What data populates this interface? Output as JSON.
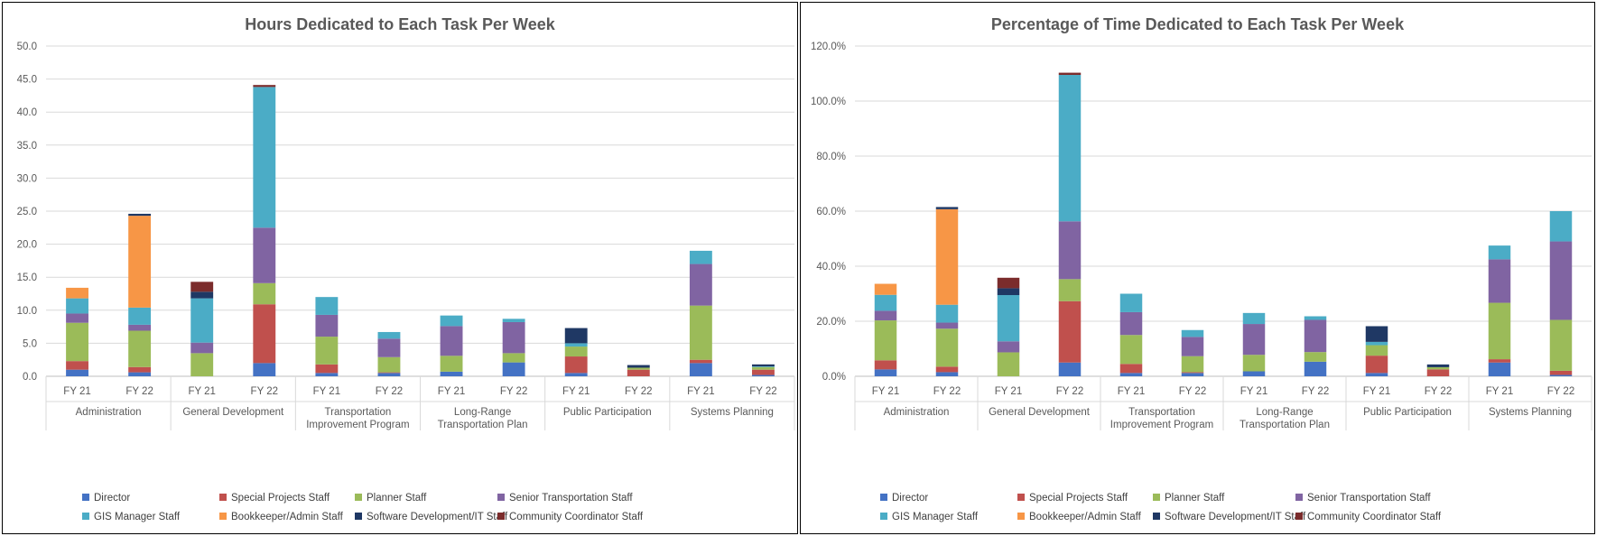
{
  "chart_data": [
    {
      "type": "bar",
      "stacked": true,
      "title": "Hours Dedicated to Each Task Per Week",
      "ylim": [
        0,
        50
      ],
      "yticks": [
        "0.0",
        "5.0",
        "10.0",
        "15.0",
        "20.0",
        "25.0",
        "30.0",
        "35.0",
        "40.0",
        "45.0",
        "50.0"
      ],
      "groups": [
        "Administration",
        "General Development",
        "Transportation Improvement Program",
        "Long-Range Transportation Plan",
        "Public Participation",
        "Systems Planning"
      ],
      "group_label_lines": [
        [
          "Administration"
        ],
        [
          "General Development"
        ],
        [
          "Transportation",
          "Improvement Program"
        ],
        [
          "Long-Range",
          "Transportation Plan"
        ],
        [
          "Public Participation"
        ],
        [
          "Systems Planning"
        ]
      ],
      "categories": [
        "FY 21",
        "FY 22",
        "FY 21",
        "FY 22",
        "FY 21",
        "FY 22",
        "FY 21",
        "FY 22",
        "FY 21",
        "FY 22",
        "FY 21",
        "FY 22"
      ],
      "series": [
        {
          "name": "Director",
          "color": "#4472C4",
          "values": [
            1.0,
            0.6,
            0.0,
            2.0,
            0.5,
            0.5,
            0.7,
            2.1,
            0.5,
            0.0,
            2.0,
            0.2
          ]
        },
        {
          "name": "Special Projects Staff",
          "color": "#C0504D",
          "values": [
            1.3,
            0.8,
            0.0,
            8.9,
            1.3,
            0.1,
            0.0,
            0.0,
            2.5,
            1.0,
            0.5,
            0.8
          ]
        },
        {
          "name": "Planner Staff",
          "color": "#9BBB59",
          "values": [
            5.8,
            5.5,
            3.5,
            3.2,
            4.2,
            2.3,
            2.4,
            1.4,
            1.5,
            0.3,
            8.2,
            0.4
          ]
        },
        {
          "name": "Senior Transportation Staff",
          "color": "#8064A2",
          "values": [
            1.4,
            0.9,
            1.6,
            8.4,
            3.3,
            2.8,
            4.5,
            4.7,
            0.0,
            0.0,
            6.3,
            0.0
          ]
        },
        {
          "name": "GIS Manager Staff",
          "color": "#4BACC6",
          "values": [
            2.3,
            2.6,
            6.7,
            21.3,
            2.7,
            1.0,
            1.6,
            0.5,
            0.5,
            0.0,
            2.0,
            0.1
          ]
        },
        {
          "name": "Bookkeeper/Admin Staff",
          "color": "#F79646",
          "values": [
            1.6,
            13.9,
            0.0,
            0.0,
            0.0,
            0.0,
            0.0,
            0.0,
            0.0,
            0.0,
            0.0,
            0.0
          ]
        },
        {
          "name": "Software Development/IT Staff",
          "color": "#1F3864",
          "values": [
            0.0,
            0.3,
            1.0,
            0.0,
            0.0,
            0.0,
            0.0,
            0.0,
            2.3,
            0.4,
            0.0,
            0.3
          ]
        },
        {
          "name": "Community Coordinator Staff",
          "color": "#7B2C2C",
          "values": [
            0.0,
            0.0,
            1.5,
            0.3,
            0.0,
            0.0,
            0.0,
            0.0,
            0.0,
            0.0,
            0.0,
            0.0
          ]
        }
      ]
    },
    {
      "type": "bar",
      "stacked": true,
      "title": "Percentage of Time Dedicated to Each Task Per Week",
      "ylim": [
        0,
        120
      ],
      "yticks": [
        "0.0%",
        "20.0%",
        "40.0%",
        "60.0%",
        "80.0%",
        "100.0%",
        "120.0%"
      ],
      "groups": [
        "Administration",
        "General Development",
        "Transportation Improvement Program",
        "Long-Range Transportation Plan",
        "Public Participation",
        "Systems Planning"
      ],
      "group_label_lines": [
        [
          "Administration"
        ],
        [
          "General Development"
        ],
        [
          "Transportation",
          "Improvement Program"
        ],
        [
          "Long-Range",
          "Transportation Plan"
        ],
        [
          "Public Participation"
        ],
        [
          "Systems Planning"
        ]
      ],
      "categories": [
        "FY 21",
        "FY 22",
        "FY 21",
        "FY 22",
        "FY 21",
        "FY 22",
        "FY 21",
        "FY 22",
        "FY 21",
        "FY 22",
        "FY 21",
        "FY 22"
      ],
      "series": [
        {
          "name": "Director",
          "color": "#4472C4",
          "values": [
            2.5,
            1.5,
            0.0,
            5.0,
            1.2,
            1.2,
            1.8,
            5.3,
            1.2,
            0.0,
            5.0,
            0.5
          ]
        },
        {
          "name": "Special Projects Staff",
          "color": "#C0504D",
          "values": [
            3.3,
            2.0,
            0.0,
            22.3,
            3.3,
            0.3,
            0.0,
            0.0,
            6.3,
            2.5,
            1.2,
            1.5
          ]
        },
        {
          "name": "Planner Staff",
          "color": "#9BBB59",
          "values": [
            14.5,
            13.8,
            8.7,
            8.0,
            10.5,
            5.8,
            6.0,
            3.5,
            3.8,
            0.8,
            20.5,
            18.5
          ]
        },
        {
          "name": "Senior Transportation Staff",
          "color": "#8064A2",
          "values": [
            3.5,
            2.2,
            4.0,
            21.0,
            8.3,
            7.0,
            11.2,
            11.7,
            0.0,
            0.0,
            15.8,
            28.5
          ]
        },
        {
          "name": "GIS Manager Staff",
          "color": "#4BACC6",
          "values": [
            5.8,
            6.5,
            16.8,
            53.2,
            6.7,
            2.5,
            4.0,
            1.3,
            1.2,
            0.0,
            5.0,
            11.0
          ]
        },
        {
          "name": "Bookkeeper/Admin Staff",
          "color": "#F79646",
          "values": [
            4.0,
            34.7,
            0.0,
            0.0,
            0.0,
            0.0,
            0.0,
            0.0,
            0.0,
            0.0,
            0.0,
            0.0
          ]
        },
        {
          "name": "Software Development/IT Staff",
          "color": "#1F3864",
          "values": [
            0.0,
            0.8,
            2.5,
            0.0,
            0.0,
            0.0,
            0.0,
            0.0,
            5.7,
            1.0,
            0.0,
            0.0
          ]
        },
        {
          "name": "Community Coordinator Staff",
          "color": "#7B2C2C",
          "values": [
            0.0,
            0.0,
            3.8,
            0.8,
            0.0,
            0.0,
            0.0,
            0.0,
            0.0,
            0.0,
            0.0,
            0.0
          ]
        }
      ]
    }
  ]
}
